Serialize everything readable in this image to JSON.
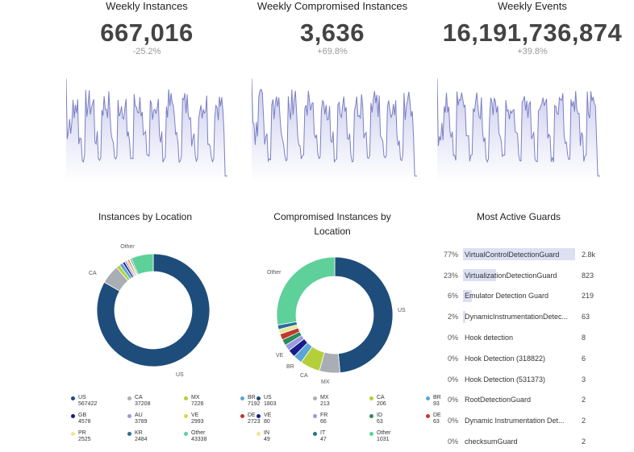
{
  "kpis": [
    {
      "title": "Weekly Instances",
      "value": "667,016",
      "change": "-25.2%"
    },
    {
      "title": "Weekly Compromised Instances",
      "value": "3,636",
      "change": "+69.8%"
    },
    {
      "title": "Weekly Events",
      "value": "16,191,736,874",
      "change": "+39.8%"
    }
  ],
  "sparkline_colors": {
    "line": "#7b7fc4",
    "fill_top": "#c9cbed",
    "fill_bottom": "#ffffff"
  },
  "sections": {
    "instances_by_location": "Instances by Location",
    "compromised_by_location_line1": "Compromised Instances by",
    "compromised_by_location_line2": "Location",
    "most_active_guards": "Most Active Guards"
  },
  "donut1": {
    "labels": {
      "us": "US",
      "ca": "CA",
      "other": "Other"
    },
    "legend": [
      {
        "code": "US",
        "count": "567422",
        "color": "#1e4d7b"
      },
      {
        "code": "CA",
        "count": "37208",
        "color": "#a9adb4"
      },
      {
        "code": "MX",
        "count": "7226",
        "color": "#b5cf3a"
      },
      {
        "code": "BR",
        "count": "7192",
        "color": "#5aa6d6"
      },
      {
        "code": "GB",
        "count": "4578",
        "color": "#1a1a8c"
      },
      {
        "code": "AU",
        "count": "3789",
        "color": "#9a9ae0"
      },
      {
        "code": "VE",
        "count": "2993",
        "color": "#d8d84a"
      },
      {
        "code": "DE",
        "count": "2723",
        "color": "#c0392b"
      },
      {
        "code": "PR",
        "count": "2525",
        "color": "#e8e89a"
      },
      {
        "code": "KR",
        "count": "2484",
        "color": "#2a6e9a"
      },
      {
        "code": "Other",
        "count": "43338",
        "color": "#5ed09a"
      }
    ]
  },
  "donut2": {
    "labels": {
      "us": "US",
      "mx": "MX",
      "ca": "CA",
      "br": "BR",
      "ve": "VE",
      "other": "Other"
    },
    "legend": [
      {
        "code": "US",
        "count": "1803",
        "color": "#1e4d7b"
      },
      {
        "code": "MX",
        "count": "213",
        "color": "#a9adb4"
      },
      {
        "code": "CA",
        "count": "206",
        "color": "#b5cf3a"
      },
      {
        "code": "BR",
        "count": "93",
        "color": "#5aa6d6"
      },
      {
        "code": "VE",
        "count": "80",
        "color": "#1a1a8c"
      },
      {
        "code": "FR",
        "count": "66",
        "color": "#9a9ae0"
      },
      {
        "code": "ID",
        "count": "63",
        "color": "#2d8a5a"
      },
      {
        "code": "DE",
        "count": "63",
        "color": "#c0392b"
      },
      {
        "code": "IN",
        "count": "49",
        "color": "#e8e89a"
      },
      {
        "code": "IT",
        "count": "47",
        "color": "#2a6e9a"
      },
      {
        "code": "Other",
        "count": "1031",
        "color": "#5ed09a"
      }
    ]
  },
  "guards": [
    {
      "pct": "77%",
      "name": "VirtualControlDetectionGuard",
      "count": "2.8k",
      "fill": 0.98
    },
    {
      "pct": "23%",
      "name": "VirtualizationDetectionGuard",
      "count": "823",
      "fill": 0.29
    },
    {
      "pct": "6%",
      "name": "Emulator Detection Guard",
      "count": "219",
      "fill": 0.08
    },
    {
      "pct": "2%",
      "name": "DynamicInstrumentationDetec...",
      "count": "63",
      "fill": 0.02
    },
    {
      "pct": "0%",
      "name": "Hook detection",
      "count": "8",
      "fill": 0
    },
    {
      "pct": "0%",
      "name": "Hook Detection (318822)",
      "count": "6",
      "fill": 0
    },
    {
      "pct": "0%",
      "name": "Hook Detection (531373)",
      "count": "3",
      "fill": 0
    },
    {
      "pct": "0%",
      "name": "RootDetectionGuard",
      "count": "2",
      "fill": 0
    },
    {
      "pct": "0%",
      "name": "Dynamic Instrumentation Det...",
      "count": "2",
      "fill": 0
    },
    {
      "pct": "0%",
      "name": "checksumGuard",
      "count": "2",
      "fill": 0
    }
  ]
}
